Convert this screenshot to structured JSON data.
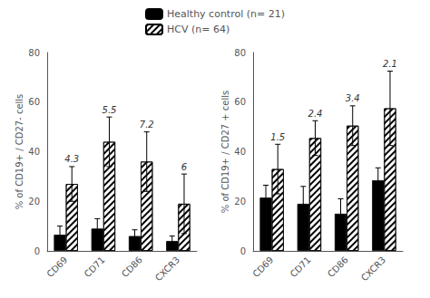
{
  "chart_data": [
    {
      "type": "bar",
      "ylabel": "% of CD19+ / CD27- cells",
      "categories": [
        "CD69",
        "CD71",
        "CD86",
        "CXCR3"
      ],
      "series": [
        {
          "name": "Healthy control (n= 21)",
          "color": "#000000",
          "values": [
            6.5,
            9.0,
            6.0,
            4.0
          ],
          "errors": [
            3.5,
            4.0,
            2.5,
            2.0
          ]
        },
        {
          "name": "HCV (n= 64)",
          "color": "#ffffff",
          "values": [
            27.0,
            44.0,
            36.0,
            19.0
          ],
          "errors": [
            7.0,
            10.0,
            12.0,
            12.0
          ],
          "annotations": [
            "4.3",
            "5.5",
            "7.2",
            "6"
          ]
        }
      ],
      "ylim": [
        0,
        80
      ],
      "yticks": [
        0,
        20,
        40,
        60,
        80
      ],
      "grid": false,
      "legend": "top"
    },
    {
      "type": "bar",
      "ylabel": "% of CD19+ / CD27 + cells",
      "categories": [
        "CD69",
        "CD71",
        "CD86",
        "CXCR3"
      ],
      "series": [
        {
          "name": "Healthy control (n= 21)",
          "color": "#000000",
          "values": [
            21.5,
            19.0,
            15.0,
            28.5
          ],
          "errors": [
            5.0,
            7.0,
            6.0,
            5.0
          ]
        },
        {
          "name": "HCV (n= 64)",
          "color": "#ffffff",
          "values": [
            33.0,
            45.5,
            50.5,
            57.5
          ],
          "errors": [
            10.0,
            7.0,
            8.0,
            15.0
          ],
          "annotations": [
            "1.5",
            "2.4",
            "3.4",
            "2.1"
          ]
        }
      ],
      "ylim": [
        0,
        80
      ],
      "yticks": [
        0,
        20,
        40,
        60,
        80
      ],
      "grid": false,
      "legend": "top"
    }
  ]
}
